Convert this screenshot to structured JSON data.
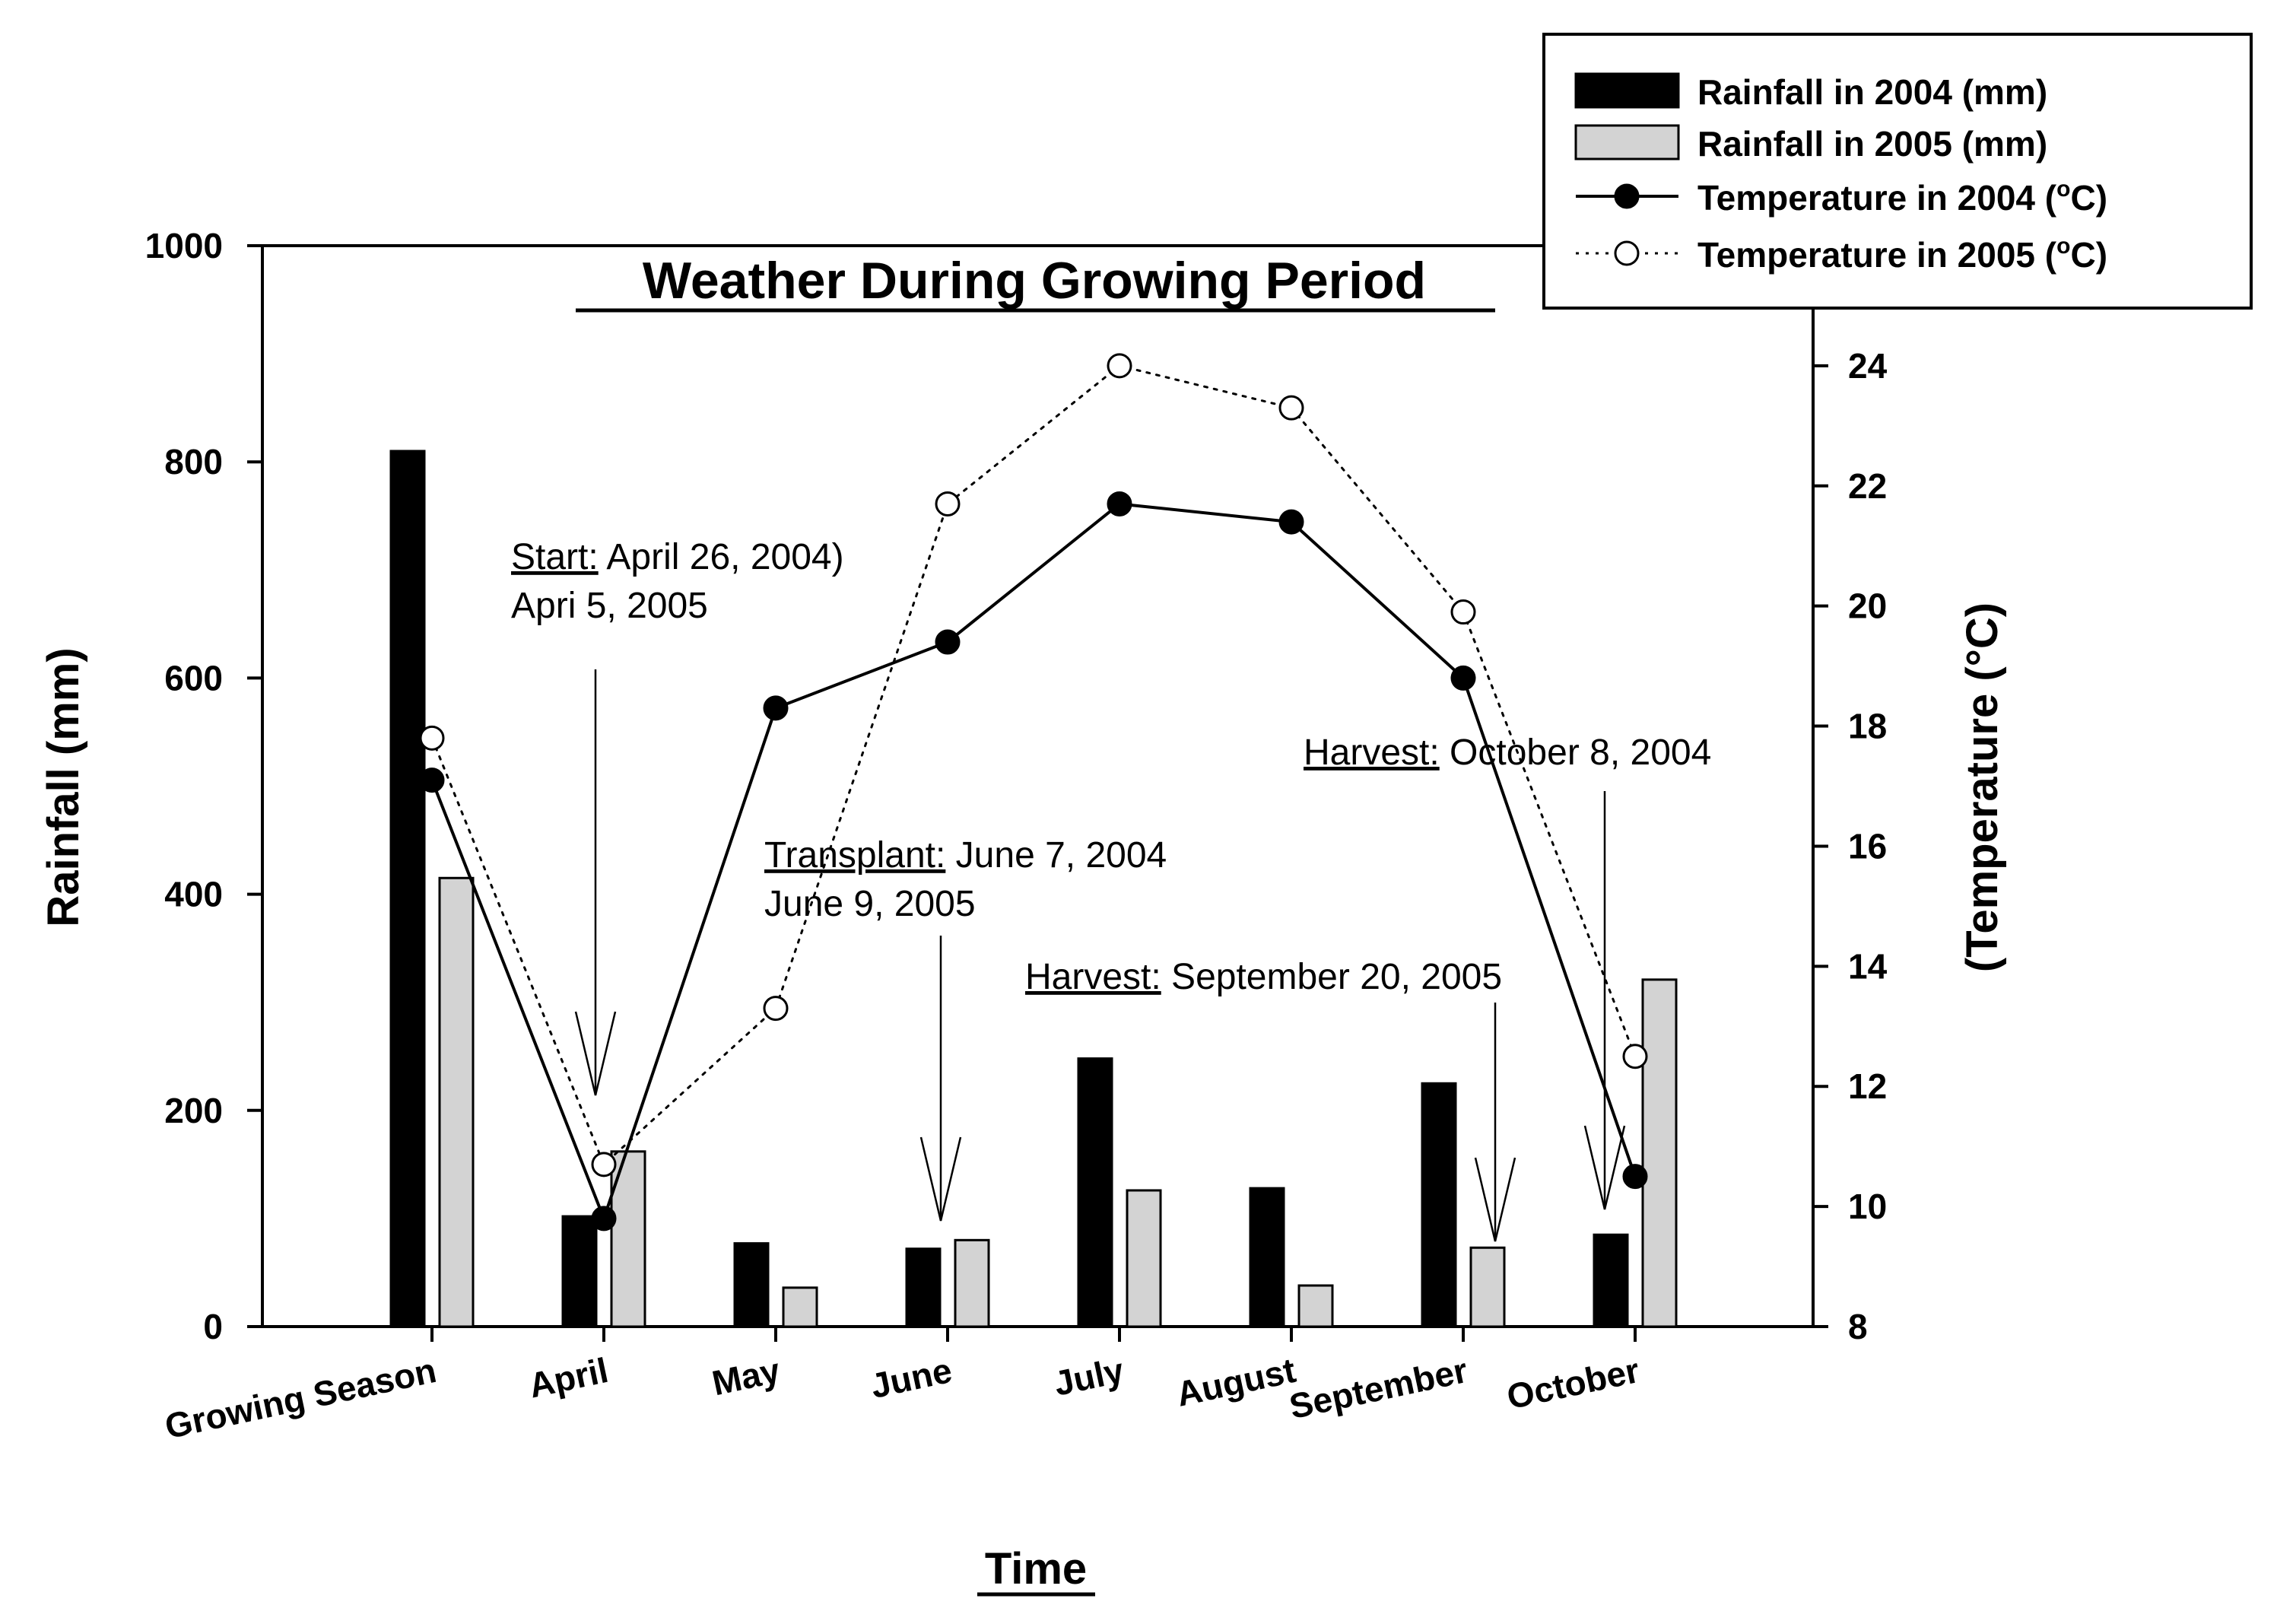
{
  "chart_data": {
    "type": "bar",
    "title": "Weather During Growing Period",
    "xlabel": "Time",
    "ylabel": "Rainfall (mm)",
    "y2label": "(Temperature (°C)",
    "ylim": [
      0,
      1000
    ],
    "y2lim": [
      8,
      26
    ],
    "yticks": [
      "0",
      "200",
      "400",
      "600",
      "800",
      "1000"
    ],
    "y2ticks": [
      "8",
      "10",
      "12",
      "14",
      "16",
      "18",
      "20",
      "22",
      "24"
    ],
    "categories": [
      "Growing Season",
      "April",
      "May",
      "June",
      "July",
      "August",
      "September",
      "October"
    ],
    "bar_series": [
      {
        "name": "Rainfall in 2004 (mm)",
        "color": "#000000",
        "values": [
          810,
          102,
          77,
          72,
          248,
          128,
          225,
          85
        ]
      },
      {
        "name": "Rainfall in 2005 (mm)",
        "color": "#d3d3d3",
        "values": [
          415,
          162,
          36,
          80,
          126,
          38,
          73,
          321
        ]
      }
    ],
    "line_series": [
      {
        "name": "Temperature in 2004",
        "unit_sup": "o",
        "unit": "C",
        "style": "solid",
        "marker": "filled",
        "values": [
          17.1,
          9.8,
          18.3,
          19.4,
          21.7,
          21.4,
          18.8,
          10.5
        ]
      },
      {
        "name": "Temperature in 2005",
        "unit_sup": "o",
        "unit": "C",
        "style": "dotted",
        "marker": "open",
        "values": [
          17.8,
          10.7,
          13.3,
          21.7,
          24.0,
          23.3,
          19.9,
          12.5
        ]
      }
    ],
    "legend_position": "top-right",
    "annotations": {
      "start": {
        "label": "Start:",
        "line1": " April 26, 2004)",
        "line2": "Apri 5, 2005"
      },
      "transplant": {
        "label": "Transplant:",
        "line1": " June 7, 2004",
        "line2": "June 9, 2005"
      },
      "harvest_2005": {
        "label": "Harvest:",
        "line1": " September 20, 2005"
      },
      "harvest_2004": {
        "label": "Harvest:",
        "line1": " October 8, 2004"
      }
    }
  }
}
